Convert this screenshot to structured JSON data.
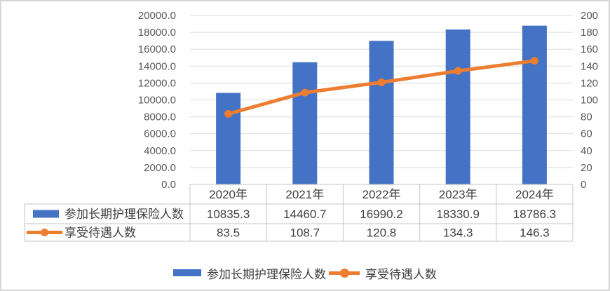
{
  "chart_data": {
    "type": "bar+line combo with data table",
    "categories": [
      "2020年",
      "2021年",
      "2022年",
      "2023年",
      "2024年"
    ],
    "series": [
      {
        "name": "参加长期护理保险人数",
        "type": "bar",
        "axis": "left",
        "color": "#4472C4",
        "values": [
          10835.3,
          14460.7,
          16990.2,
          18330.9,
          18786.3
        ]
      },
      {
        "name": "享受待遇人数",
        "type": "line",
        "axis": "right",
        "color": "#ED7D31",
        "values": [
          83.5,
          108.7,
          120.8,
          134.3,
          146.3
        ]
      }
    ],
    "left_axis": {
      "min": 0,
      "max": 20000,
      "step": 2000,
      "decimals": 1
    },
    "right_axis": {
      "min": 0,
      "max": 200,
      "step": 20,
      "decimals": 0
    },
    "grid": true,
    "legend_position": "bottom",
    "data_table_shown": true
  },
  "colors": {
    "bar": "#4472C4",
    "line": "#ED7D31",
    "gridline": "#DCDCDC",
    "table_border": "#C6C6C6",
    "axis_text": "#595959",
    "table_text": "#404040",
    "frame_border": "#D6D6D6"
  }
}
